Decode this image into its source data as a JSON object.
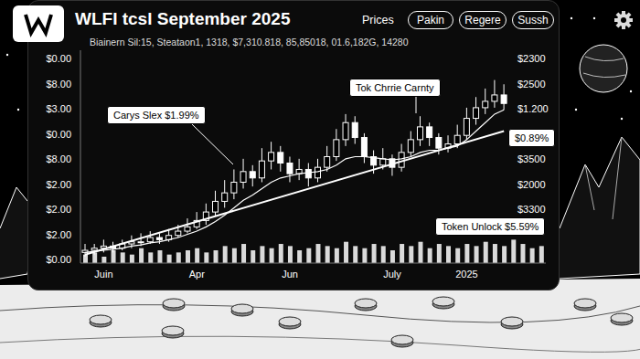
{
  "header": {
    "label": "Prices",
    "buttons": [
      "Pakin",
      "Regere",
      "Sussh"
    ]
  },
  "chart_data": {
    "type": "candlestick",
    "title": "WLFI tcsl September 2025",
    "subtitle": "Biainern Sil:15, Steataon1, 1318, $7,310.818, 85,85018, 01.6,182G, 14280",
    "color": "#ffffff",
    "categories": [
      null,
      null,
      "Juin",
      null,
      null,
      null,
      null,
      null,
      null,
      null,
      null,
      null,
      "Apr",
      null,
      null,
      null,
      null,
      null,
      null,
      null,
      null,
      null,
      "Jun",
      null,
      null,
      null,
      null,
      null,
      null,
      null,
      null,
      null,
      null,
      "July",
      null,
      null,
      null,
      null,
      null,
      null,
      null,
      "2025",
      null,
      null,
      null,
      null,
      null,
      null,
      null,
      null
    ],
    "open": [
      0.5,
      0.6,
      0.7,
      0.8,
      0.7,
      0.9,
      1.0,
      1.0,
      1.2,
      1.1,
      1.3,
      1.5,
      1.7,
      2.0,
      2.4,
      2.9,
      3.3,
      3.8,
      4.3,
      4.0,
      4.8,
      5.2,
      4.7,
      4.2,
      4.4,
      4.0,
      4.5,
      5.0,
      5.8,
      6.6,
      5.9,
      5.0,
      4.6,
      4.9,
      4.5,
      5.2,
      5.8,
      6.4,
      5.9,
      5.4,
      5.6,
      6.0,
      6.8,
      7.3,
      7.6,
      7.9,
      null,
      null,
      null,
      null
    ],
    "high": [
      0.9,
      0.9,
      1.1,
      1.0,
      1.1,
      1.3,
      1.4,
      1.5,
      1.4,
      1.6,
      1.8,
      2.1,
      2.4,
      2.8,
      3.4,
      3.9,
      4.4,
      4.9,
      4.6,
      5.4,
      5.7,
      5.5,
      5.0,
      4.9,
      4.7,
      4.9,
      5.5,
      6.3,
      7.0,
      6.9,
      6.1,
      5.3,
      5.4,
      5.1,
      5.6,
      6.2,
      6.9,
      6.6,
      6.1,
      6.0,
      6.5,
      7.3,
      7.8,
      8.2,
      8.6,
      8.4,
      null,
      null,
      null,
      null
    ],
    "low": [
      0.3,
      0.4,
      0.5,
      0.5,
      0.6,
      0.7,
      0.8,
      0.9,
      0.9,
      1.0,
      1.2,
      1.4,
      1.6,
      1.8,
      2.2,
      2.6,
      3.0,
      3.5,
      3.6,
      3.8,
      4.4,
      4.3,
      3.8,
      3.9,
      3.6,
      3.8,
      4.3,
      4.8,
      5.5,
      5.6,
      4.7,
      4.2,
      4.4,
      4.1,
      4.3,
      5.0,
      5.5,
      5.5,
      5.1,
      5.2,
      5.4,
      5.8,
      6.5,
      7.0,
      7.3,
      7.2,
      null,
      null,
      null,
      null
    ],
    "close": [
      0.6,
      0.7,
      0.8,
      0.7,
      0.9,
      1.0,
      1.0,
      1.2,
      1.1,
      1.3,
      1.5,
      1.7,
      2.0,
      2.4,
      2.9,
      3.3,
      3.8,
      4.3,
      4.0,
      4.8,
      5.2,
      4.7,
      4.2,
      4.4,
      4.0,
      4.5,
      5.0,
      5.8,
      6.6,
      5.9,
      5.0,
      4.6,
      4.9,
      4.5,
      5.2,
      5.8,
      6.4,
      5.9,
      5.4,
      5.6,
      6.0,
      6.8,
      7.3,
      7.6,
      7.9,
      7.5,
      null,
      null,
      null,
      null
    ],
    "moving_average": [
      0.5,
      0.55,
      0.6,
      0.65,
      0.7,
      0.8,
      0.85,
      0.95,
      1.0,
      1.1,
      1.2,
      1.35,
      1.5,
      1.7,
      1.95,
      2.25,
      2.6,
      2.95,
      3.2,
      3.5,
      3.8,
      4.0,
      4.1,
      4.2,
      4.25,
      4.3,
      4.4,
      4.6,
      4.9,
      5.0,
      5.0,
      4.95,
      4.9,
      4.85,
      4.9,
      5.0,
      5.2,
      5.3,
      5.3,
      5.4,
      5.5,
      5.8,
      6.2,
      6.6,
      7.0,
      7.2,
      null,
      null,
      null,
      null
    ],
    "trend": [
      0.4,
      null,
      null,
      null,
      null,
      null,
      null,
      null,
      null,
      null,
      null,
      null,
      null,
      null,
      null,
      null,
      null,
      null,
      null,
      null,
      null,
      null,
      null,
      null,
      null,
      null,
      null,
      null,
      null,
      null,
      null,
      null,
      null,
      null,
      null,
      null,
      null,
      null,
      null,
      null,
      null,
      null,
      null,
      null,
      null,
      6.2,
      null,
      null,
      null,
      null
    ],
    "volume": [
      0.4,
      0.5,
      0.3,
      0.6,
      0.5,
      0.4,
      0.7,
      0.5,
      0.6,
      0.4,
      0.5,
      0.6,
      0.7,
      0.5,
      0.6,
      0.8,
      0.7,
      0.9,
      0.6,
      0.8,
      0.7,
      0.9,
      0.8,
      0.6,
      0.7,
      0.9,
      0.8,
      0.7,
      1.0,
      0.8,
      0.7,
      0.9,
      0.8,
      0.6,
      0.9,
      0.8,
      1.0,
      0.7,
      0.9,
      0.8,
      0.7,
      0.9,
      0.8,
      1.0,
      0.9,
      0.8,
      1.1,
      0.9,
      0.7,
      0.8
    ],
    "ylim": [
      0,
      10
    ],
    "tick_labels": "x",
    "grid": false,
    "left_labels": [
      "$0.00",
      "$8.00",
      "$3.00",
      "$0.00",
      "$8.00",
      "$2.00",
      "$2.00",
      "$2.00",
      "$0.00"
    ],
    "right_labels": [
      "$2300",
      "$2500",
      "$1.200",
      "$3500",
      "$2000",
      "$3300"
    ],
    "annotations": [
      {
        "text": "Carys Slex $1.99%"
      },
      {
        "text": "Tok Chrrie Carnty"
      },
      {
        "text": "$0.89%"
      },
      {
        "text": "Token Unlock $5.59%"
      }
    ]
  }
}
